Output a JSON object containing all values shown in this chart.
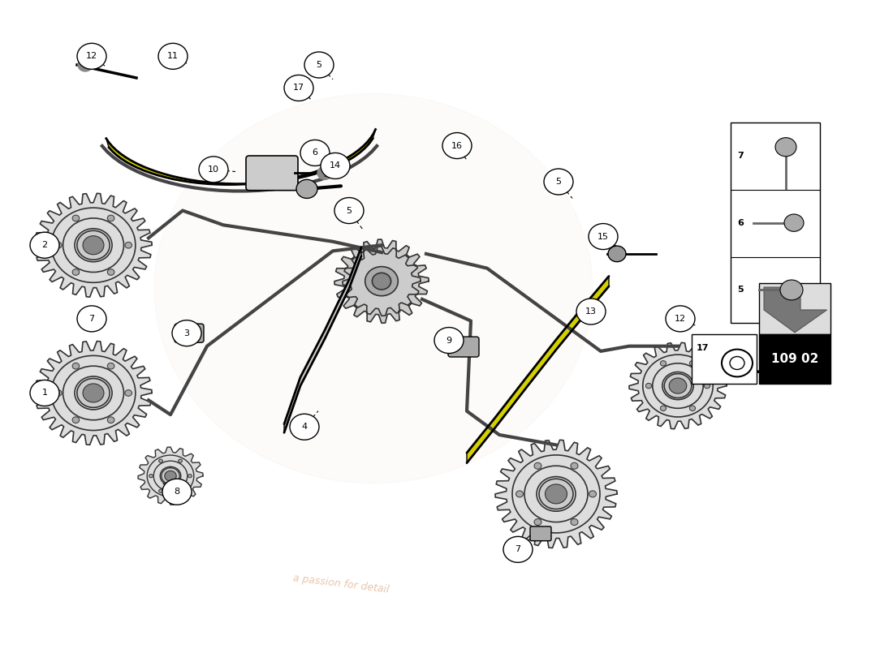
{
  "bg_color": "#ffffff",
  "part_number": "109 02",
  "accent_yellow": "#d4d000",
  "chain_dark": "#444444",
  "chain_light": "#aaaaaa",
  "gear_color": "#333333",
  "watermark_text": "a passion for detail",
  "watermark_color": "#d4956a"
}
